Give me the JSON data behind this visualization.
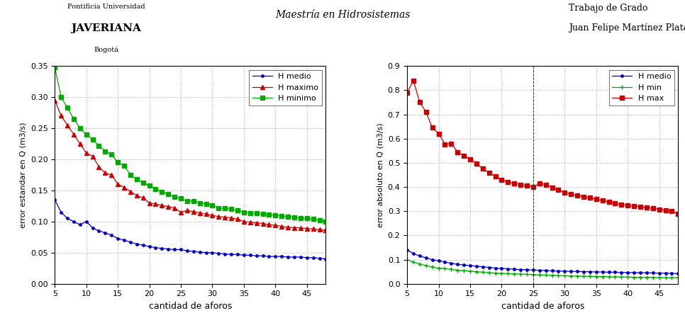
{
  "x": [
    5,
    6,
    7,
    8,
    9,
    10,
    11,
    12,
    13,
    14,
    15,
    16,
    17,
    18,
    19,
    20,
    21,
    22,
    23,
    24,
    25,
    26,
    27,
    28,
    29,
    30,
    31,
    32,
    33,
    34,
    35,
    36,
    37,
    38,
    39,
    40,
    41,
    42,
    43,
    44,
    45,
    46,
    47,
    48
  ],
  "left_medio": [
    0.135,
    0.115,
    0.105,
    0.1,
    0.095,
    0.1,
    0.09,
    0.085,
    0.082,
    0.078,
    0.073,
    0.07,
    0.067,
    0.064,
    0.062,
    0.06,
    0.058,
    0.057,
    0.056,
    0.055,
    0.055,
    0.053,
    0.052,
    0.051,
    0.05,
    0.05,
    0.049,
    0.048,
    0.047,
    0.047,
    0.046,
    0.046,
    0.045,
    0.045,
    0.044,
    0.044,
    0.044,
    0.043,
    0.043,
    0.043,
    0.042,
    0.042,
    0.041,
    0.04
  ],
  "left_maximo": [
    0.295,
    0.27,
    0.255,
    0.24,
    0.225,
    0.21,
    0.205,
    0.188,
    0.178,
    0.175,
    0.16,
    0.155,
    0.148,
    0.142,
    0.138,
    0.13,
    0.128,
    0.126,
    0.124,
    0.122,
    0.115,
    0.118,
    0.116,
    0.114,
    0.112,
    0.11,
    0.108,
    0.107,
    0.106,
    0.104,
    0.1,
    0.099,
    0.098,
    0.097,
    0.095,
    0.094,
    0.092,
    0.091,
    0.09,
    0.09,
    0.089,
    0.088,
    0.087,
    0.086
  ],
  "left_minimo": [
    0.348,
    0.3,
    0.283,
    0.265,
    0.25,
    0.24,
    0.232,
    0.222,
    0.213,
    0.208,
    0.195,
    0.19,
    0.175,
    0.168,
    0.162,
    0.158,
    0.152,
    0.148,
    0.144,
    0.14,
    0.137,
    0.133,
    0.133,
    0.13,
    0.128,
    0.126,
    0.122,
    0.121,
    0.12,
    0.118,
    0.115,
    0.114,
    0.113,
    0.112,
    0.111,
    0.11,
    0.109,
    0.108,
    0.107,
    0.106,
    0.105,
    0.104,
    0.102,
    0.1
  ],
  "right_medio": [
    0.14,
    0.125,
    0.115,
    0.107,
    0.1,
    0.095,
    0.09,
    0.085,
    0.08,
    0.078,
    0.075,
    0.073,
    0.07,
    0.068,
    0.065,
    0.063,
    0.062,
    0.06,
    0.059,
    0.058,
    0.057,
    0.056,
    0.055,
    0.054,
    0.053,
    0.052,
    0.051,
    0.051,
    0.05,
    0.05,
    0.049,
    0.049,
    0.048,
    0.048,
    0.047,
    0.047,
    0.046,
    0.046,
    0.045,
    0.045,
    0.044,
    0.044,
    0.043,
    0.042
  ],
  "right_min": [
    0.1,
    0.09,
    0.082,
    0.075,
    0.07,
    0.065,
    0.063,
    0.06,
    0.056,
    0.054,
    0.052,
    0.05,
    0.048,
    0.046,
    0.044,
    0.043,
    0.042,
    0.041,
    0.04,
    0.039,
    0.038,
    0.037,
    0.036,
    0.035,
    0.034,
    0.033,
    0.032,
    0.032,
    0.031,
    0.031,
    0.03,
    0.03,
    0.029,
    0.029,
    0.028,
    0.028,
    0.027,
    0.027,
    0.027,
    0.026,
    0.026,
    0.025,
    0.025,
    0.025
  ],
  "right_max": [
    0.79,
    0.84,
    0.75,
    0.71,
    0.645,
    0.62,
    0.577,
    0.58,
    0.545,
    0.53,
    0.515,
    0.498,
    0.475,
    0.458,
    0.443,
    0.43,
    0.42,
    0.415,
    0.41,
    0.405,
    0.4,
    0.415,
    0.41,
    0.398,
    0.388,
    0.378,
    0.37,
    0.365,
    0.36,
    0.355,
    0.35,
    0.345,
    0.338,
    0.333,
    0.328,
    0.325,
    0.322,
    0.318,
    0.315,
    0.312,
    0.308,
    0.305,
    0.3,
    0.29
  ],
  "left_ylabel": "error estandar en Q (m3/s)",
  "right_ylabel": "error absoluto en Q (m3/s)",
  "xlabel": "cantidad de aforos",
  "left_ylim": [
    0,
    0.35
  ],
  "right_ylim": [
    0,
    0.9
  ],
  "xlim": [
    5,
    48
  ],
  "xticks": [
    5,
    10,
    15,
    20,
    25,
    30,
    35,
    40,
    45
  ],
  "left_yticks": [
    0,
    0.05,
    0.1,
    0.15,
    0.2,
    0.25,
    0.3,
    0.35
  ],
  "right_yticks": [
    0,
    0.1,
    0.2,
    0.3,
    0.4,
    0.5,
    0.6,
    0.7,
    0.8,
    0.9
  ],
  "legend_left": [
    "H medio",
    "H maximo",
    "H minimo"
  ],
  "legend_right": [
    "H medio",
    "H min",
    "H max"
  ],
  "color_medio": "#0000cc",
  "color_maximo": "#cc0000",
  "color_minimo": "#00aa00",
  "color_min": "#00aa00",
  "color_max": "#cc0000",
  "bg_color": "#ffffff",
  "grid_color": "#999999",
  "header_center": "Maestría en Hidrosistemas",
  "header_right1": "Trabajo de Grado",
  "header_right2": "Juan Felipe Martínez Plata"
}
